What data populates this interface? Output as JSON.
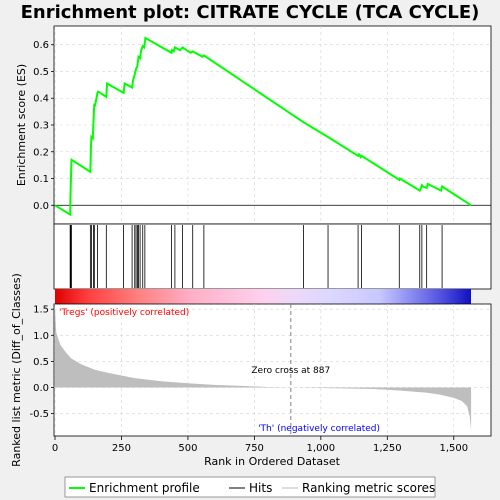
{
  "chart_data": {
    "type": "line",
    "title": "Enrichment plot: CITRATE CYCLE (TCA CYCLE)",
    "xlabel": "Rank in Ordered Dataset",
    "es_panel": {
      "ylabel": "Enrichment score (ES)",
      "ylim": [
        -0.07,
        0.67
      ],
      "yticks": [
        "0.0",
        "0.1",
        "0.2",
        "0.3",
        "0.4",
        "0.5",
        "0.6"
      ],
      "ytick_values": [
        0.0,
        0.1,
        0.2,
        0.3,
        0.4,
        0.5,
        0.6
      ],
      "series_name": "Enrichment profile",
      "x": [
        0,
        57,
        58,
        59,
        62,
        133,
        135,
        137,
        142,
        145,
        148,
        150,
        160,
        163,
        193,
        196,
        258,
        262,
        290,
        293,
        300,
        305,
        310,
        314,
        320,
        323,
        330,
        335,
        338,
        340,
        438,
        440,
        447,
        451,
        470,
        480,
        510,
        518,
        555,
        560,
        935,
        1027,
        1140,
        1143,
        1150,
        1153,
        1295,
        1297,
        1372,
        1375,
        1380,
        1384,
        1398,
        1402,
        1452,
        1456,
        1565
      ],
      "y": [
        0.0,
        -0.035,
        0.015,
        0.07,
        0.17,
        0.125,
        0.21,
        0.255,
        0.25,
        0.315,
        0.38,
        0.37,
        0.42,
        0.425,
        0.405,
        0.455,
        0.42,
        0.455,
        0.44,
        0.465,
        0.49,
        0.51,
        0.52,
        0.555,
        0.55,
        0.575,
        0.595,
        0.59,
        0.61,
        0.625,
        0.57,
        0.58,
        0.575,
        0.59,
        0.58,
        0.59,
        0.57,
        0.575,
        0.555,
        0.56,
        0.31,
        0.255,
        0.185,
        0.19,
        0.18,
        0.185,
        0.095,
        0.1,
        0.055,
        0.06,
        0.075,
        0.07,
        0.065,
        0.08,
        0.055,
        0.07,
        0.0
      ]
    },
    "hits_panel": {
      "series_name": "Hits",
      "positions": [
        57,
        58,
        59,
        62,
        133,
        137,
        145,
        148,
        160,
        193,
        258,
        290,
        300,
        305,
        310,
        314,
        320,
        330,
        338,
        438,
        451,
        480,
        518,
        560,
        935,
        1027,
        1140,
        1153,
        1295,
        1372,
        1380,
        1398,
        1456
      ]
    },
    "ranking_panel": {
      "ylabel": "Ranked list metric (Diff_of_Classes)",
      "series_name": "Ranking metric scores",
      "ylim": [
        -0.93,
        1.6
      ],
      "yticks": [
        "-0.5",
        "0.0",
        "0.5",
        "1.0",
        "1.5"
      ],
      "ytick_values": [
        -0.5,
        0.0,
        0.5,
        1.0,
        1.5
      ],
      "x": [
        0,
        5,
        20,
        40,
        60,
        100,
        150,
        200,
        300,
        400,
        500,
        600,
        700,
        800,
        887,
        1000,
        1100,
        1200,
        1300,
        1400,
        1450,
        1500,
        1530,
        1550,
        1560,
        1565
      ],
      "y": [
        1.52,
        1.05,
        0.82,
        0.68,
        0.56,
        0.44,
        0.34,
        0.28,
        0.18,
        0.12,
        0.08,
        0.05,
        0.03,
        0.01,
        0.0,
        -0.01,
        -0.02,
        -0.03,
        -0.06,
        -0.1,
        -0.14,
        -0.2,
        -0.26,
        -0.36,
        -0.55,
        -0.82
      ],
      "zero_cross_label": "Zero cross at 887",
      "zero_cross_x": 887,
      "pos_label": "'Tregs' (positively correlated)",
      "neg_label": "'Th' (negatively correlated)"
    },
    "x_axis": {
      "xlim": [
        0,
        1640
      ],
      "xticks": [
        "0",
        "250",
        "500",
        "750",
        "1,000",
        "1,250",
        "1,500"
      ],
      "xtick_values": [
        0,
        250,
        500,
        750,
        1000,
        1250,
        1500
      ],
      "n_genes": 1565
    },
    "colors": {
      "enrichment": "#00ff00",
      "hits": "#000000",
      "ranking_fill": "#bebebe",
      "zero_line": "#808080",
      "pos_text": "#ff0000",
      "neg_text": "#0000ff",
      "grid": "#d3d3d3"
    },
    "legend": {
      "placement": "bottom",
      "items": [
        "Enrichment profile",
        "Hits",
        "Ranking metric scores"
      ]
    }
  }
}
